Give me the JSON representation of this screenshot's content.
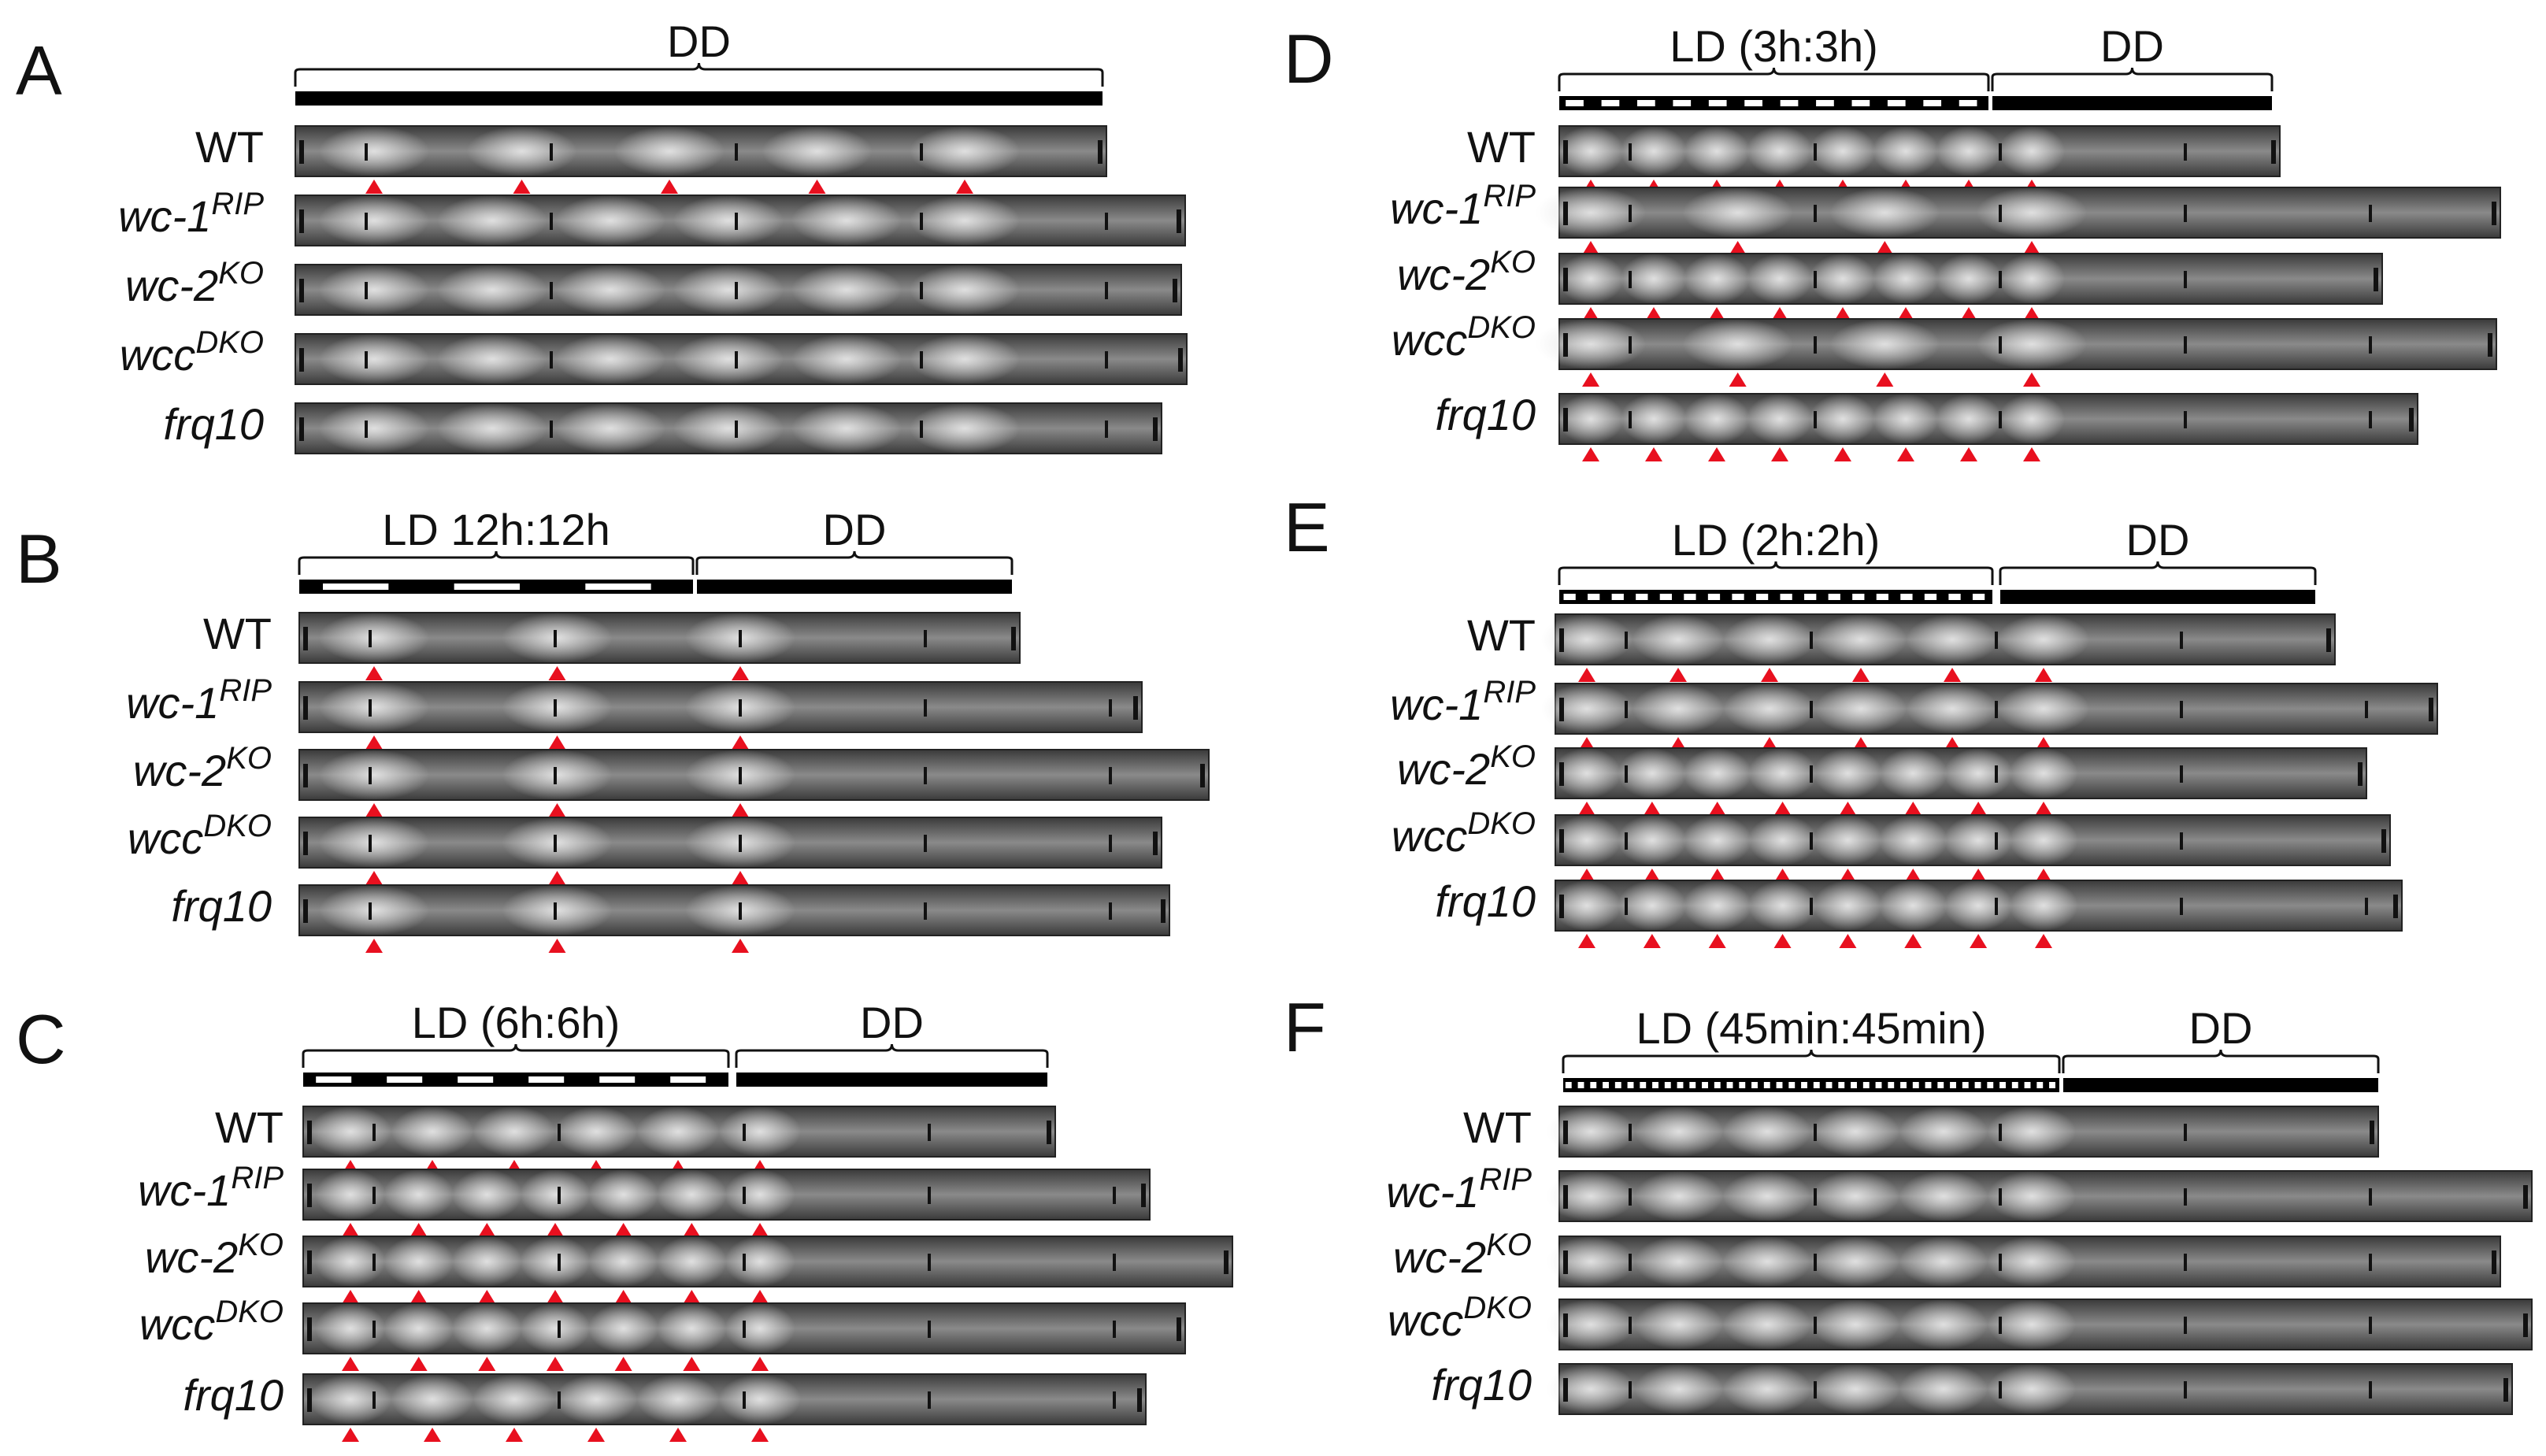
{
  "colors": {
    "arrowhead": "#e8101f",
    "tube_dark": "#3c3c3c",
    "tube_light": "#8c8c8c",
    "band": "#d9d9d9",
    "light_bar": "#ffffff",
    "dark_bar": "#000000"
  },
  "panels": [
    {
      "letter": "A",
      "conditions": [
        {
          "label": "DD",
          "type": "dark"
        }
      ],
      "strains": [
        {
          "name": "WT",
          "sup": "",
          "italic": false,
          "arrows": 5
        },
        {
          "name": "wc-1",
          "sup": "RIP",
          "italic": true,
          "arrows": 0
        },
        {
          "name": "wc-2",
          "sup": "KO",
          "italic": true,
          "arrows": 0
        },
        {
          "name": "wcc",
          "sup": "DKO",
          "italic": true,
          "arrows": 0
        },
        {
          "name": "frq10",
          "sup": "",
          "italic": true,
          "arrows": 0
        }
      ]
    },
    {
      "letter": "B",
      "conditions": [
        {
          "label": "LD 12h:12h",
          "type": "ld"
        },
        {
          "label": "DD",
          "type": "dark"
        }
      ],
      "strains": [
        {
          "name": "WT",
          "sup": "",
          "italic": false,
          "arrows": 3
        },
        {
          "name": "wc-1",
          "sup": "RIP",
          "italic": true,
          "arrows": 3
        },
        {
          "name": "wc-2",
          "sup": "KO",
          "italic": true,
          "arrows": 3
        },
        {
          "name": "wcc",
          "sup": "DKO",
          "italic": true,
          "arrows": 3
        },
        {
          "name": "frq10",
          "sup": "",
          "italic": true,
          "arrows": 3
        }
      ]
    },
    {
      "letter": "C",
      "conditions": [
        {
          "label": "LD (6h:6h)",
          "type": "ld"
        },
        {
          "label": "DD",
          "type": "dark"
        }
      ],
      "strains": [
        {
          "name": "WT",
          "sup": "",
          "italic": false,
          "arrows": 6
        },
        {
          "name": "wc-1",
          "sup": "RIP",
          "italic": true,
          "arrows": 7
        },
        {
          "name": "wc-2",
          "sup": "KO",
          "italic": true,
          "arrows": 7
        },
        {
          "name": "wcc",
          "sup": "DKO",
          "italic": true,
          "arrows": 7
        },
        {
          "name": "frq10",
          "sup": "",
          "italic": true,
          "arrows": 6
        }
      ]
    },
    {
      "letter": "D",
      "conditions": [
        {
          "label": "LD (3h:3h)",
          "type": "ld"
        },
        {
          "label": "DD",
          "type": "dark"
        }
      ],
      "strains": [
        {
          "name": "WT",
          "sup": "",
          "italic": false,
          "arrows": 8
        },
        {
          "name": "wc-1",
          "sup": "RIP",
          "italic": true,
          "arrows": 4
        },
        {
          "name": "wc-2",
          "sup": "KO",
          "italic": true,
          "arrows": 8
        },
        {
          "name": "wcc",
          "sup": "DKO",
          "italic": true,
          "arrows": 4
        },
        {
          "name": "frq10",
          "sup": "",
          "italic": true,
          "arrows": 8
        }
      ]
    },
    {
      "letter": "E",
      "conditions": [
        {
          "label": "LD (2h:2h)",
          "type": "ld"
        },
        {
          "label": "DD",
          "type": "dark"
        }
      ],
      "strains": [
        {
          "name": "WT",
          "sup": "",
          "italic": false,
          "arrows": 6
        },
        {
          "name": "wc-1",
          "sup": "RIP",
          "italic": true,
          "arrows": 6
        },
        {
          "name": "wc-2",
          "sup": "KO",
          "italic": true,
          "arrows": 8
        },
        {
          "name": "wcc",
          "sup": "DKO",
          "italic": true,
          "arrows": 8
        },
        {
          "name": "frq10",
          "sup": "",
          "italic": true,
          "arrows": 8
        }
      ]
    },
    {
      "letter": "F",
      "conditions": [
        {
          "label": "LD (45min:45min)",
          "type": "ld"
        },
        {
          "label": "DD",
          "type": "dark"
        }
      ],
      "strains": [
        {
          "name": "WT",
          "sup": "",
          "italic": false,
          "arrows": 0
        },
        {
          "name": "wc-1",
          "sup": "RIP",
          "italic": true,
          "arrows": 0
        },
        {
          "name": "wc-2",
          "sup": "KO",
          "italic": true,
          "arrows": 0
        },
        {
          "name": "wcc",
          "sup": "DKO",
          "italic": true,
          "arrows": 0
        },
        {
          "name": "frq10",
          "sup": "",
          "italic": true,
          "arrows": 0
        }
      ]
    }
  ]
}
